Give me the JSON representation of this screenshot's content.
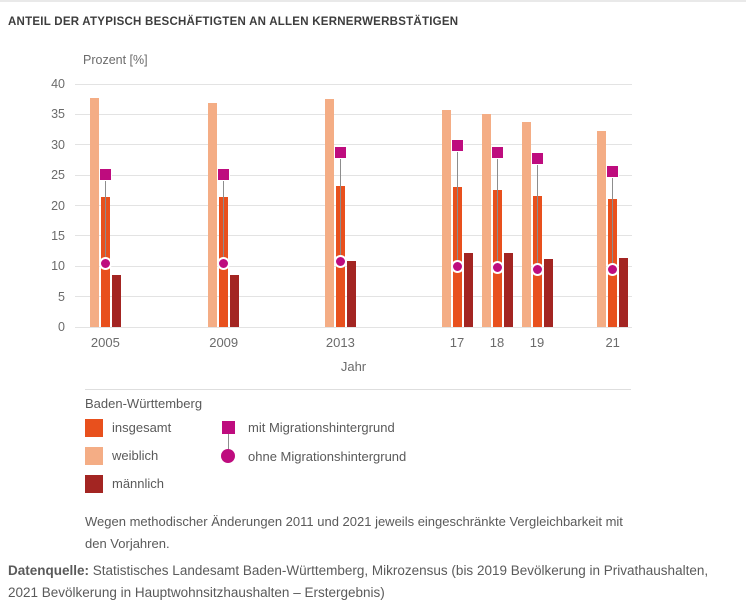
{
  "page_title": "ANTEIL DER ATYPISCH BESCHÄFTIGTEN AN ALLEN KERNERWERBSTÄTIGEN",
  "chart_data": {
    "type": "bar",
    "title": "ANTEIL DER ATYPISCH BESCHÄFTIGTEN AN ALLEN KERNERWERBSTÄTIGEN",
    "ylabel": "Prozent [%]",
    "xlabel": "Jahr",
    "ylim": [
      0,
      40
    ],
    "yticks": [
      0,
      5,
      10,
      15,
      20,
      25,
      30,
      35,
      40
    ],
    "grid": true,
    "legend_position": "below",
    "categories": [
      "2005",
      "2009",
      "2013",
      "17",
      "18",
      "19",
      "21"
    ],
    "series": [
      {
        "name": "insgesamt",
        "render": "bar",
        "color": "#e8501d",
        "values": [
          21.4,
          21.4,
          23.2,
          23.0,
          22.6,
          21.6,
          21.0
        ]
      },
      {
        "name": "weiblich",
        "render": "bar",
        "color": "#f4ad85",
        "values": [
          37.7,
          36.9,
          37.6,
          35.7,
          35.0,
          33.7,
          32.2
        ]
      },
      {
        "name": "männlich",
        "render": "bar",
        "color": "#a32522",
        "values": [
          8.6,
          8.5,
          10.9,
          12.2,
          12.2,
          11.2,
          11.3
        ]
      },
      {
        "name": "mit Migrationshintergrund",
        "render": "marker",
        "marker": "square",
        "color": "#be0c7e",
        "values": [
          25.1,
          25.1,
          28.7,
          29.9,
          28.8,
          27.7,
          25.6
        ]
      },
      {
        "name": "ohne Migrationshintergrund",
        "render": "marker",
        "marker": "circle",
        "color": "#be0c7e",
        "values": [
          10.4,
          10.4,
          10.7,
          9.9,
          9.8,
          9.5,
          9.4
        ]
      }
    ]
  },
  "legend": {
    "title": "Baden-Württemberg",
    "items": [
      {
        "label": "insgesamt",
        "color": "#e8501d"
      },
      {
        "label": "weiblich",
        "color": "#f4ad85"
      },
      {
        "label": "männlich",
        "color": "#a32522"
      }
    ],
    "marker_items": [
      {
        "label": "mit Migrationshintergrund",
        "shape": "square",
        "color": "#be0c7e"
      },
      {
        "label": "ohne Migrationshintergrund",
        "shape": "circle",
        "color": "#be0c7e"
      }
    ]
  },
  "footnote": {
    "line1": "Wegen methodischer Änderungen 2011 und 2021 jeweils eingeschränkte Vergleichbarkeit mit",
    "line2": "den Vorjahren."
  },
  "source": {
    "prefix": "Datenquelle:",
    "line1_rest": "Statistisches Landesamt Baden-Württemberg, Mikrozensus (bis 2019 Bevölkerung in Privathaushalten,",
    "line2": "2021 Bevölkerung in Hauptwohnsitzhaushalten – Erstergebnis)"
  },
  "colors": {
    "insgesamt": "#e8501d",
    "weiblich": "#f4ad85",
    "maennlich": "#a32522",
    "migration_marker": "#be0c7e",
    "gridline": "#e3e3e3",
    "axis_text": "#6b6b6b",
    "body_text": "#5a5a5a",
    "title_text": "#3d3d3d"
  }
}
